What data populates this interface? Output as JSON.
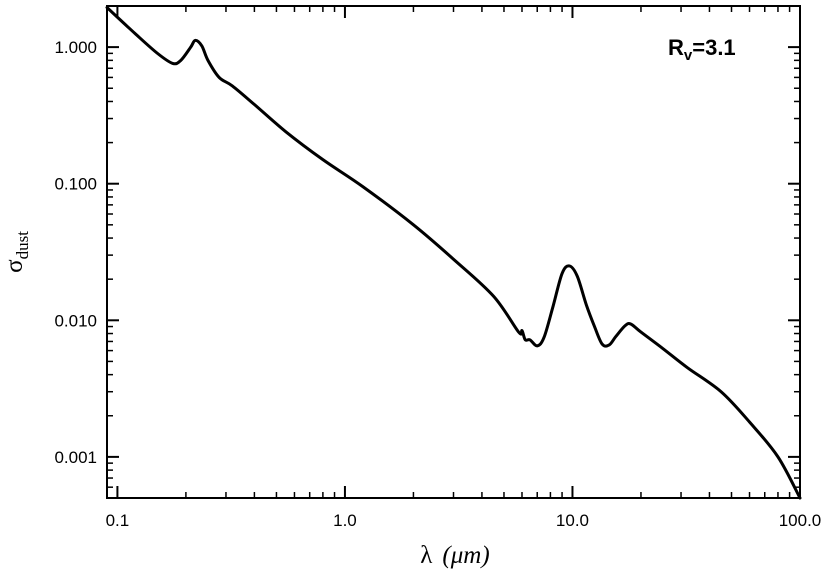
{
  "chart_data": {
    "type": "line",
    "title": "",
    "xlabel": "λ",
    "xlabel_unit": "(μm)",
    "ylabel_symbol": "σ",
    "ylabel_subscript": "dust",
    "x_scale": "log",
    "y_scale": "log",
    "xlim": [
      0.09,
      100
    ],
    "ylim": [
      0.0005,
      2.0
    ],
    "x_ticks": [
      0.1,
      1.0,
      10.0,
      100.0
    ],
    "x_tick_labels": [
      "0.1",
      "1.0",
      "10.0",
      "100.0"
    ],
    "y_ticks": [
      0.001,
      0.01,
      0.1,
      1.0
    ],
    "y_tick_labels": [
      "0.001",
      "0.010",
      "0.100",
      "1.000"
    ],
    "grid": false,
    "annotation_main": "R",
    "annotation_sub": "v",
    "annotation_rest": "=3.1",
    "series": [
      {
        "color": "#000000",
        "x": [
          0.09,
          0.12,
          0.15,
          0.175,
          0.19,
          0.21,
          0.22,
          0.235,
          0.25,
          0.28,
          0.32,
          0.4,
          0.55,
          0.8,
          1.2,
          2.0,
          3.0,
          4.5,
          5.8,
          6.0,
          6.2,
          6.5,
          7.0,
          7.5,
          8.2,
          9.0,
          9.7,
          10.5,
          11.5,
          12.5,
          13.5,
          14.5,
          15.5,
          17.0,
          18.0,
          20.0,
          25.0,
          32.0,
          45.0,
          60.0,
          80.0,
          100.0
        ],
        "y": [
          1.95,
          1.25,
          0.9,
          0.76,
          0.8,
          1.0,
          1.12,
          1.02,
          0.8,
          0.6,
          0.52,
          0.38,
          0.24,
          0.15,
          0.095,
          0.05,
          0.028,
          0.015,
          0.0082,
          0.0084,
          0.0072,
          0.0072,
          0.0065,
          0.0075,
          0.0125,
          0.022,
          0.025,
          0.021,
          0.013,
          0.009,
          0.0067,
          0.0066,
          0.0076,
          0.0091,
          0.0094,
          0.0082,
          0.0062,
          0.0045,
          0.003,
          0.0018,
          0.001,
          0.0005
        ]
      }
    ]
  }
}
